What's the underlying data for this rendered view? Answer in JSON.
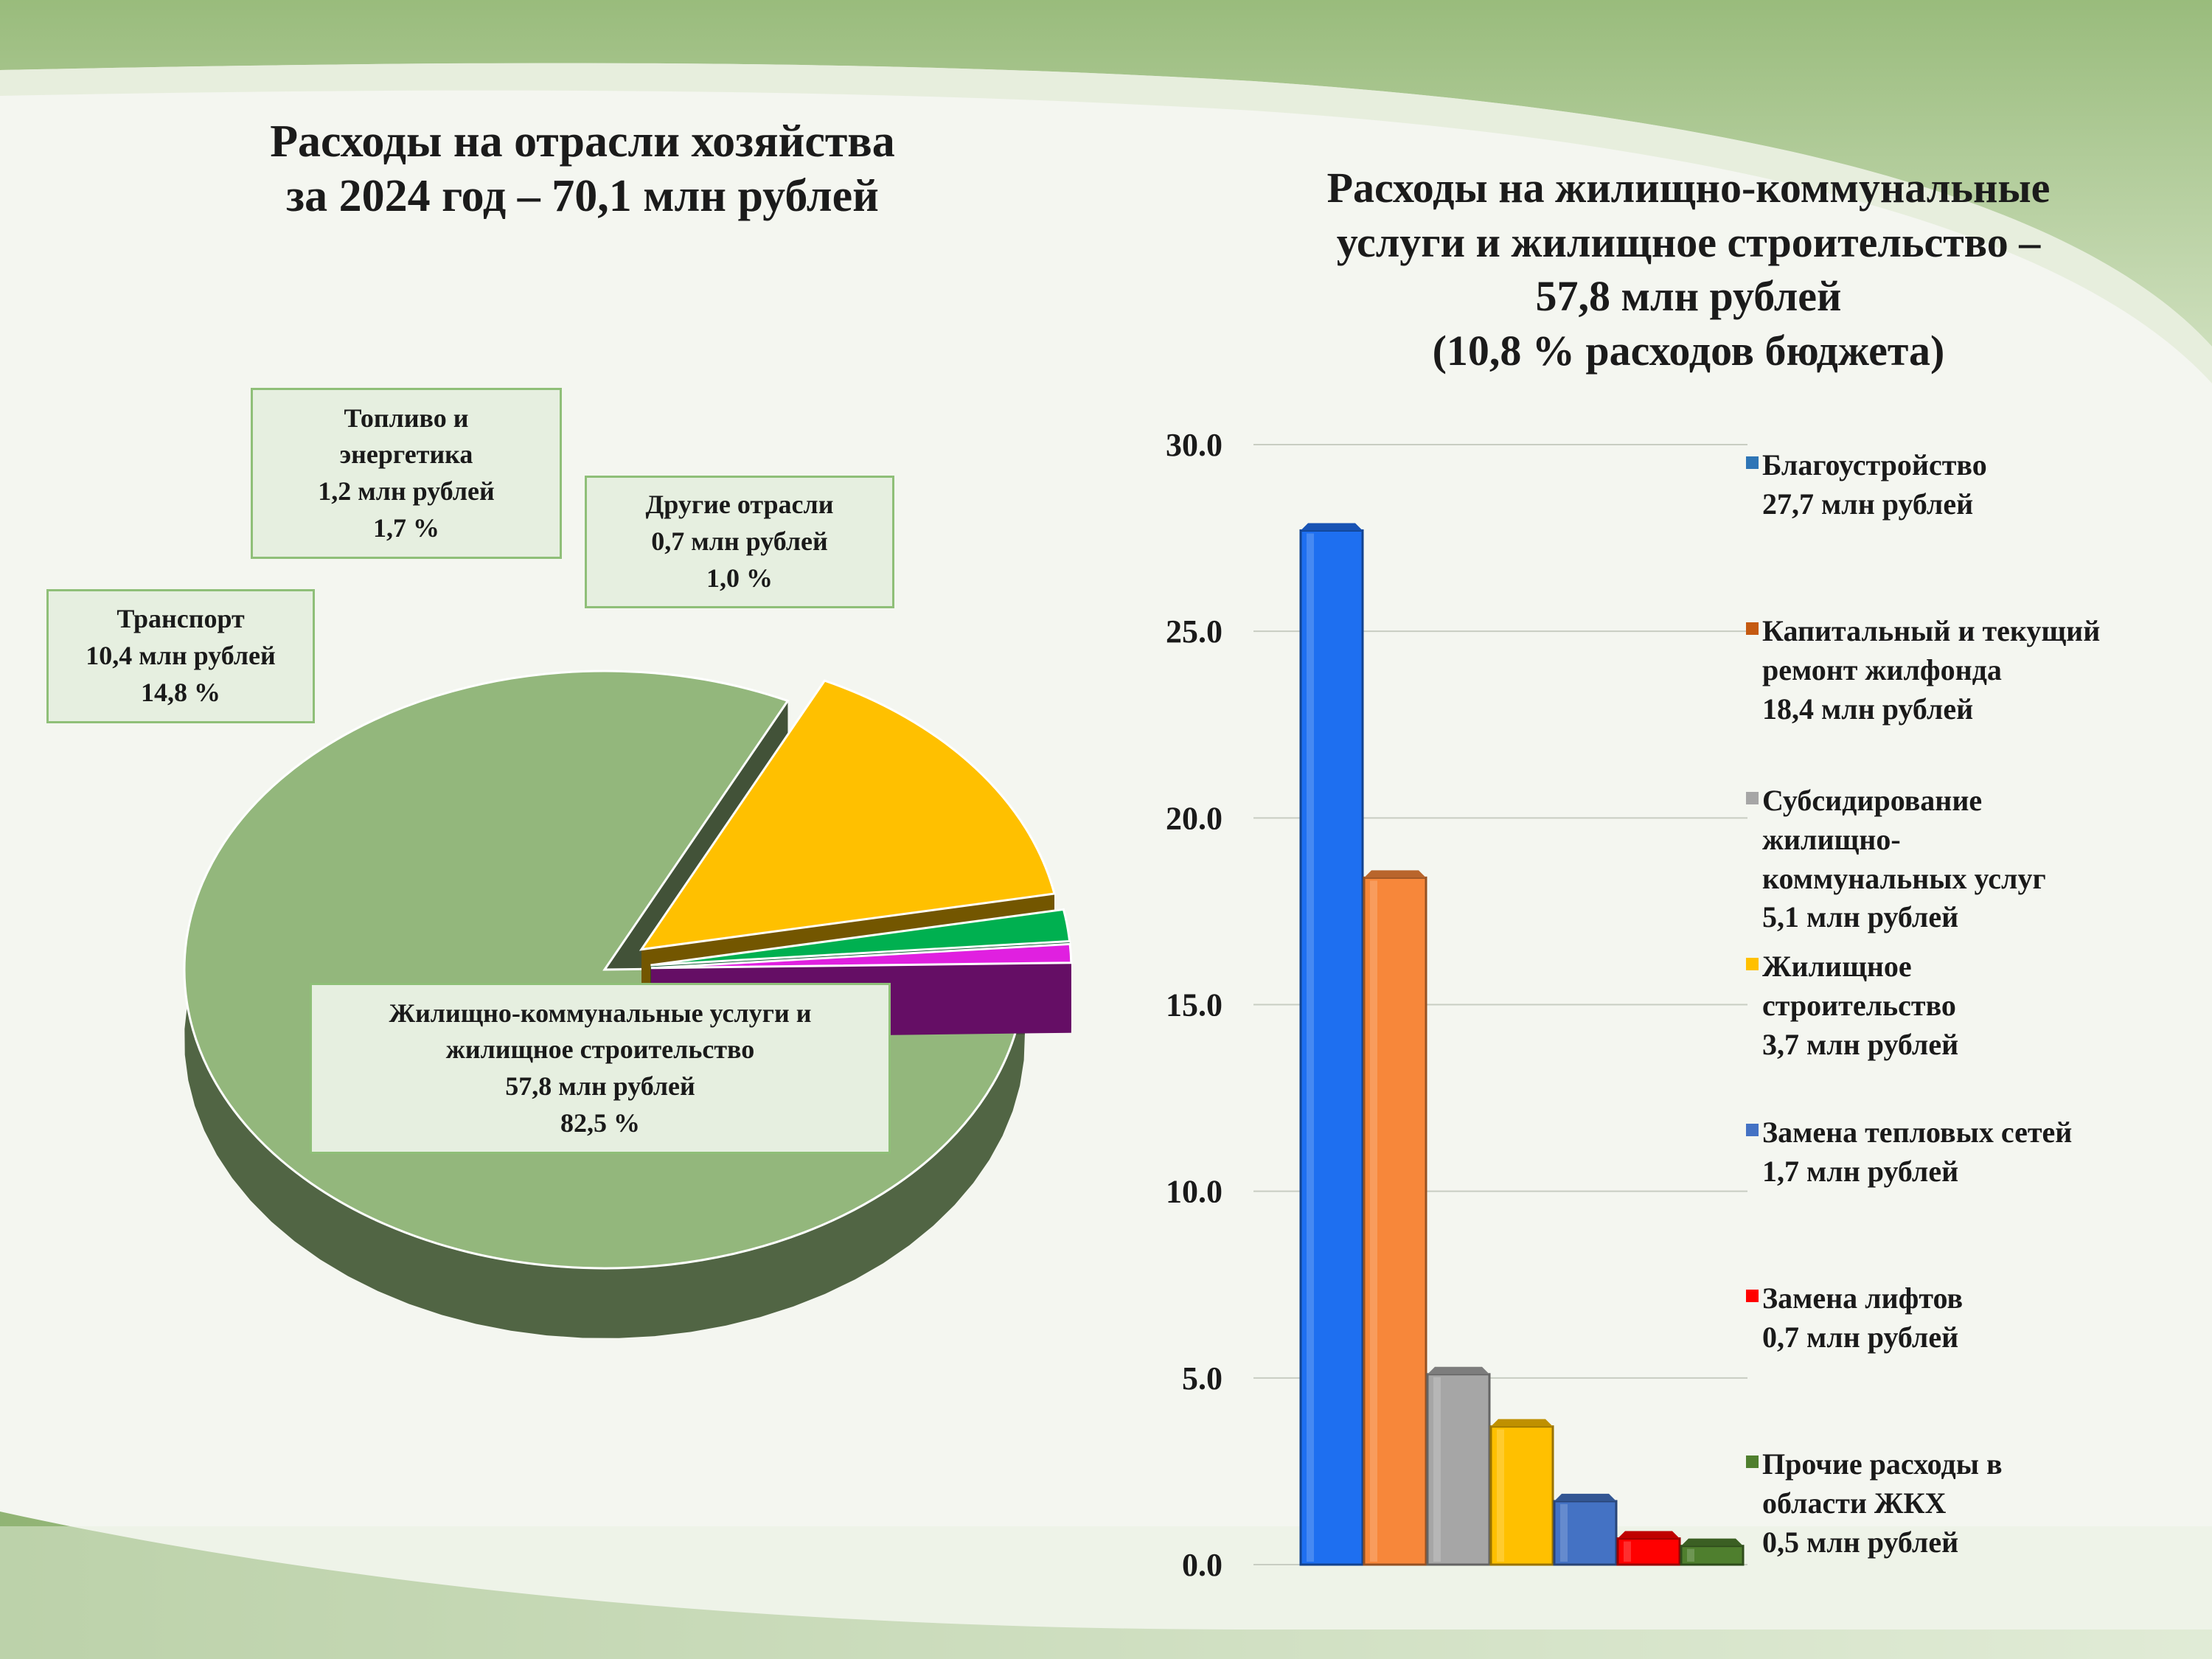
{
  "left_title": {
    "line1": "Расходы на отрасли хозяйства",
    "line2": "за 2024 год – 70,1 млн рублей"
  },
  "right_title": {
    "line1": "Расходы на жилищно-коммунальные",
    "line2": "услуги и жилищное строительство –",
    "line3": "57,8 млн рублей",
    "line4": "(10,8 % расходов бюджета)"
  },
  "chart_data": [
    {
      "type": "pie",
      "title": "Расходы на отрасли хозяйства за 2024 год – 70,1 млн рублей",
      "slices": [
        {
          "label": "Жилищно-коммунальные услуги и жилищное строительство",
          "value": 57.8,
          "percent": 82.5,
          "color": "#93b77c",
          "exploded": false
        },
        {
          "label": "Транспорт",
          "value": 10.4,
          "percent": 14.8,
          "color": "#ffc000",
          "exploded": true
        },
        {
          "label": "Топливо и энергетика",
          "value": 1.2,
          "percent": 1.7,
          "color": "#00b050",
          "exploded": true
        },
        {
          "label": "Другие отрасли",
          "value": 0.7,
          "percent": 1.0,
          "color": "#e020e0",
          "exploded": true
        }
      ]
    },
    {
      "type": "bar",
      "title": "Расходы на жилищно-коммунальные услуги и жилищное строительство – 57,8 млн рублей (10,8 % расходов бюджета)",
      "categories": [
        "Благоустройство",
        "Капитальный и текущий ремонт жилфонда",
        "Субсидирование жилищно-коммунальных услуг",
        "Жилищное строительство",
        "Замена тепловых сетей",
        "Замена лифтов",
        "Прочие расходы в области ЖКХ"
      ],
      "values": [
        27.7,
        18.4,
        5.1,
        3.7,
        1.7,
        0.7,
        0.5
      ],
      "colors": [
        "#1e6ff0",
        "#f7873a",
        "#a6a6a6",
        "#ffc000",
        "#4472c4",
        "#ff0000",
        "#4f7f2e"
      ],
      "ylim": [
        0,
        30
      ],
      "yticks": [
        "0.0",
        "5.0",
        "10.0",
        "15.0",
        "20.0",
        "25.0",
        "30.0"
      ],
      "grid": true,
      "legend": "right"
    }
  ],
  "pie_labels": {
    "fuel": {
      "l1": "Топливо и",
      "l2": "энергетика",
      "l3": "1,2 млн рублей",
      "l4": "1,7 %"
    },
    "other": {
      "l1": "Другие отрасли",
      "l2": "0,7 млн рублей",
      "l3": "1,0 %"
    },
    "transport": {
      "l1": "Транспорт",
      "l2": "10,4 млн рублей",
      "l3": "14,8 %"
    },
    "housing": {
      "l1": "Жилищно-коммунальные услуги и",
      "l2": "жилищное строительство",
      "l3": "57,8 млн рублей",
      "l4": "82,5 %"
    }
  },
  "legend": [
    {
      "lines": [
        "Благоустройство",
        "27,7 млн рублей"
      ],
      "color": "#2e75b6"
    },
    {
      "lines": [
        "Капитальный и текущий",
        "ремонт жилфонда",
        "18,4 млн рублей"
      ],
      "color": "#c55a11"
    },
    {
      "lines": [
        "Субсидирование",
        "жилищно-",
        "коммунальных услуг",
        "5,1 млн рублей"
      ],
      "color": "#a6a6a6"
    },
    {
      "lines": [
        "Жилищное",
        "строительство",
        "3,7 млн рублей"
      ],
      "color": "#ffc000"
    },
    {
      "lines": [
        "Замена тепловых сетей",
        "1,7 млн рублей"
      ],
      "color": "#4472c4"
    },
    {
      "lines": [
        "Замена лифтов",
        "0,7 млн рублей"
      ],
      "color": "#ff0000"
    },
    {
      "lines": [
        "Прочие расходы в",
        "области ЖКХ",
        "0,5 млн рублей"
      ],
      "color": "#4f7f2e"
    }
  ]
}
